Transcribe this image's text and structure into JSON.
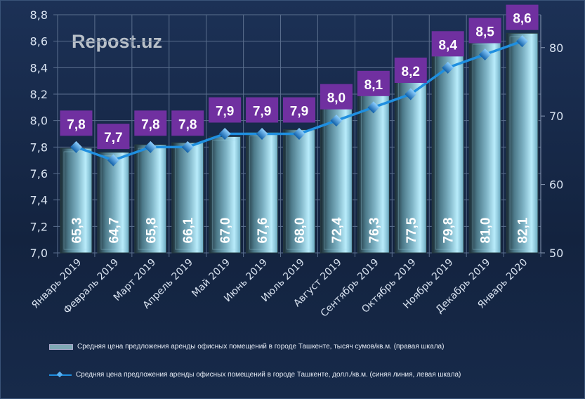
{
  "watermark": "Repost.uz",
  "chart_data": {
    "type": "bar+line",
    "categories": [
      "Январь 2019",
      "Февраль 2019",
      "Март 2019",
      "Апрель 2019",
      "Май 2019",
      "Июнь 2019",
      "Июль 2019",
      "Август 2019",
      "Сентябрь 2019",
      "Октябрь 2019",
      "Ноябрь 2019",
      "Декабрь 2019",
      "Январь 2020"
    ],
    "series": [
      {
        "name": "Средняя цена предложения аренды офисных помещений в городе Ташкенте, тысяч сумов/кв.м. (правая шкала)",
        "type": "bar",
        "axis": "right",
        "values": [
          65.3,
          64.7,
          65.8,
          66.1,
          67.0,
          67.6,
          68.0,
          72.4,
          76.3,
          77.5,
          79.8,
          81.0,
          82.1
        ],
        "labels": [
          "65,3",
          "64,7",
          "65,8",
          "66,1",
          "67,0",
          "67,6",
          "68,0",
          "72,4",
          "76,3",
          "77,5",
          "79,8",
          "81,0",
          "82,1"
        ],
        "color": "#8fd3ec"
      },
      {
        "name": "Средняя цена предложения аренды офисных помещений в городе Ташкенте, долл./кв.м. (синяя линия, левая шкала)",
        "type": "line",
        "axis": "left",
        "values": [
          7.8,
          7.7,
          7.8,
          7.8,
          7.9,
          7.9,
          7.9,
          8.0,
          8.1,
          8.2,
          8.4,
          8.5,
          8.6
        ],
        "labels": [
          "7,8",
          "7,7",
          "7,8",
          "7,8",
          "7,9",
          "7,9",
          "7,9",
          "8,0",
          "8,1",
          "8,2",
          "8,4",
          "8,5",
          "8,6"
        ],
        "color": "#1f8fe0",
        "label_bg": "#7030a0"
      }
    ],
    "left_axis": {
      "range": [
        7.0,
        8.8
      ],
      "ticks": [
        "7,0",
        "7,2",
        "7,4",
        "7,6",
        "7,8",
        "8,0",
        "8,2",
        "8,4",
        "8,6",
        "8,8"
      ]
    },
    "right_axis": {
      "range": [
        50,
        84.8
      ],
      "ticks": [
        "50",
        "60",
        "70",
        "80"
      ]
    },
    "grid": true,
    "legend_position": "bottom"
  }
}
